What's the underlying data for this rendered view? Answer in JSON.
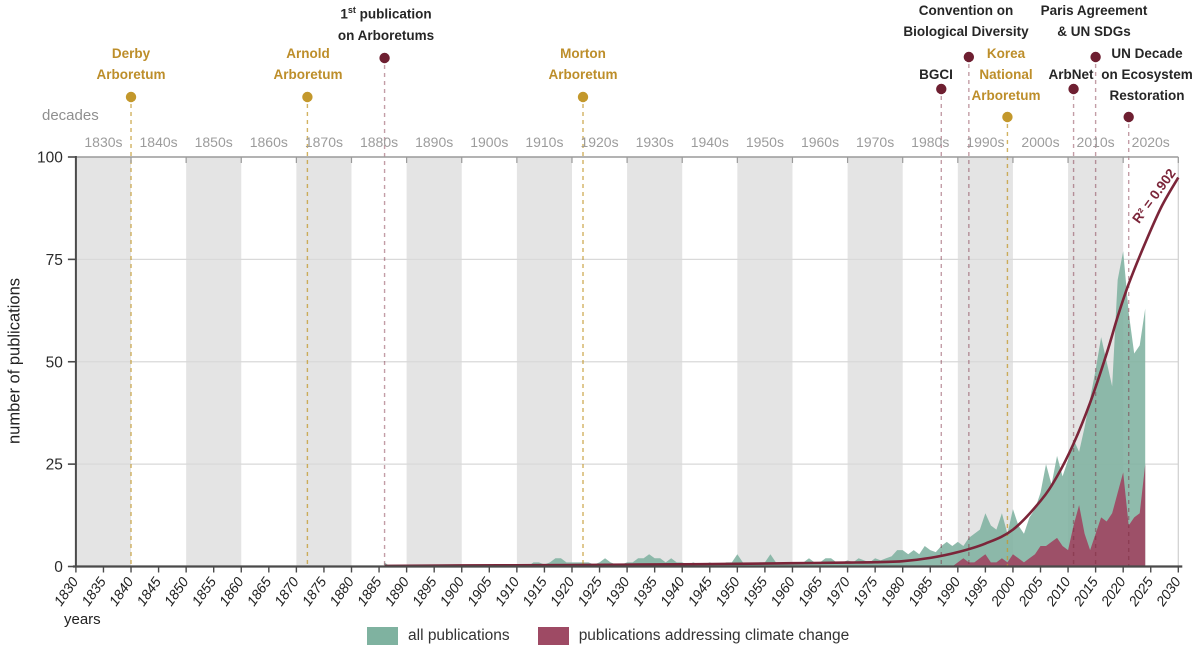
{
  "figure": {
    "y_axis_title": "number of publications",
    "x_axis_title": "years",
    "decades_row_label": "decades"
  },
  "chart_data": {
    "type": "area",
    "title": "",
    "xlabel": "years",
    "ylabel": "number of publications",
    "x_start_year": 1830,
    "x_end_year": 2030,
    "x_tick_step": 5,
    "ylim": [
      0,
      100
    ],
    "y_ticks": [
      0,
      25,
      50,
      75,
      100
    ],
    "grid_y": [
      25,
      50,
      75
    ],
    "decade_labels": [
      "1830s",
      "1840s",
      "1850s",
      "1860s",
      "1870s",
      "1880s",
      "1890s",
      "1900s",
      "1910s",
      "1920s",
      "1930s",
      "1940s",
      "1950s",
      "1960s",
      "1970s",
      "1980s",
      "1990s",
      "2000s",
      "2010s",
      "2020s"
    ],
    "shaded_decades": [
      1830,
      1850,
      1870,
      1890,
      1910,
      1930,
      1950,
      1970,
      1990,
      2010
    ],
    "legend_position": "bottom",
    "series": [
      {
        "name": "all publications",
        "color": "#7fb2a0",
        "start_year": 1886,
        "values": [
          1,
          0,
          0,
          0,
          0,
          0,
          0,
          0,
          0,
          0,
          0,
          0,
          0,
          0,
          0,
          0,
          0,
          0,
          0,
          0,
          0,
          0,
          0,
          0,
          0,
          0,
          0,
          1,
          1,
          0.5,
          1,
          2,
          2,
          1,
          1,
          1,
          1,
          1,
          0.5,
          1,
          2,
          1,
          0.5,
          0.5,
          1,
          1,
          2,
          2,
          3,
          2,
          2,
          1,
          2,
          1,
          1,
          0.5,
          1,
          0.5,
          0.5,
          1,
          0.5,
          0.5,
          1,
          1,
          3,
          1,
          0.5,
          0.5,
          1,
          1,
          3,
          1,
          0.5,
          0.5,
          0.5,
          1,
          1,
          2,
          1,
          1,
          2,
          2,
          1,
          1,
          1.5,
          1,
          2,
          1.5,
          1,
          2,
          1.5,
          2,
          2.5,
          4,
          4,
          3,
          4,
          3,
          5,
          4,
          3.5,
          5,
          6,
          5,
          6,
          5,
          7,
          8,
          9,
          13,
          10,
          9,
          13,
          8,
          14,
          10,
          8,
          12,
          14,
          18,
          25,
          20,
          27,
          22,
          26,
          31,
          28,
          34,
          41,
          48,
          56,
          50,
          44,
          70,
          77,
          62,
          52,
          54,
          63
        ]
      },
      {
        "name": "publications addressing climate change",
        "color": "#9e4a64",
        "start_year": 1886,
        "values": [
          0,
          0,
          0,
          0,
          0,
          0,
          0,
          0,
          0,
          0,
          0,
          0,
          0,
          0,
          0,
          0,
          0,
          0,
          0,
          0,
          0,
          0,
          0,
          0,
          0,
          0,
          0,
          0,
          0,
          0,
          0,
          0,
          0,
          0,
          0,
          0,
          0,
          0,
          0,
          0,
          0,
          0,
          0,
          0,
          0,
          0,
          0,
          0,
          0,
          0,
          0,
          0,
          0,
          0,
          0,
          0,
          0,
          0,
          0,
          0,
          0,
          0,
          0,
          0,
          0,
          0,
          0,
          0,
          0,
          0,
          0,
          0,
          0,
          0,
          0,
          0,
          0,
          0,
          0,
          0,
          0,
          0,
          0,
          0,
          0,
          0,
          0,
          0,
          0,
          0,
          0,
          0,
          0,
          0,
          0,
          0,
          0,
          0,
          0,
          0,
          0,
          0,
          0,
          0,
          1,
          2,
          1,
          1,
          2,
          3,
          1,
          1,
          2,
          1,
          3,
          2,
          1,
          2,
          3,
          5,
          5,
          6,
          7,
          5,
          4,
          10,
          15,
          8,
          4,
          8,
          12,
          11,
          13,
          18,
          23,
          10,
          12,
          13,
          25
        ]
      }
    ],
    "trend": {
      "label": "R² = 0.902",
      "r_squared": 0.902,
      "color": "#7b2539",
      "points": [
        [
          1886,
          0.15
        ],
        [
          1900,
          0.25
        ],
        [
          1910,
          0.3
        ],
        [
          1920,
          0.35
        ],
        [
          1930,
          0.45
        ],
        [
          1940,
          0.55
        ],
        [
          1950,
          0.65
        ],
        [
          1960,
          0.8
        ],
        [
          1970,
          0.95
        ],
        [
          1975,
          1.05
        ],
        [
          1980,
          1.3
        ],
        [
          1985,
          2.1
        ],
        [
          1990,
          3.5
        ],
        [
          1995,
          5.6
        ],
        [
          2000,
          9
        ],
        [
          2005,
          16
        ],
        [
          2008,
          22
        ],
        [
          2011,
          30
        ],
        [
          2014,
          40
        ],
        [
          2017,
          52
        ],
        [
          2019,
          61
        ],
        [
          2021,
          69
        ],
        [
          2024,
          79
        ],
        [
          2027,
          88
        ],
        [
          2030,
          95
        ]
      ]
    },
    "events": [
      {
        "name": "derby-arboretum",
        "year": 1840,
        "type": "gold",
        "dot_y": 97,
        "label_lines": [
          "Derby",
          "Arboretum"
        ]
      },
      {
        "name": "arnold-arboretum",
        "year": 1872,
        "type": "gold",
        "dot_y": 97,
        "label_lines": [
          "Arnold",
          "Arboretum"
        ]
      },
      {
        "name": "first-publication-on-arboretums",
        "year": 1886,
        "type": "darkred",
        "dot_y": 58,
        "label_lines": [
          "1st publication",
          "on Arboretums"
        ],
        "sup_parts": {
          "num": "1",
          "sup": "st",
          "rest": "publication"
        }
      },
      {
        "name": "morton-arboretum",
        "year": 1922,
        "type": "gold",
        "dot_y": 97,
        "label_lines": [
          "Morton",
          "Arboretum"
        ]
      },
      {
        "name": "bgci",
        "year": 1987,
        "type": "darkred",
        "dot_y": 89,
        "label_lines": [
          "BGCI"
        ]
      },
      {
        "name": "convention-on-biological-diversity",
        "year": 1992,
        "type": "darkred",
        "dot_y": 57,
        "label_lines": [
          "Convention on",
          "Biological Diversity"
        ]
      },
      {
        "name": "korea-national-arboretum",
        "year": 1999,
        "type": "gold",
        "dot_y": 117,
        "label_lines": [
          "Korea",
          "National",
          "Arboretum"
        ]
      },
      {
        "name": "arbnet",
        "year": 2011,
        "type": "darkred",
        "dot_y": 89,
        "label_lines": [
          "ArbNet"
        ]
      },
      {
        "name": "paris-agreement-un-sdgs",
        "year": 2015,
        "type": "darkred",
        "dot_y": 57,
        "label_lines": [
          "Paris Agreement",
          "& UN SDGs"
        ]
      },
      {
        "name": "un-decade-ecosystem-restoration",
        "year": 2021,
        "type": "darkred",
        "dot_y": 117,
        "label_lines": [
          "UN Decade",
          "on Ecosystem",
          "Restoration"
        ]
      }
    ],
    "colors": {
      "band": "#e4e4e4",
      "gridline": "#d9d9d9",
      "axis": "#4a4a4a",
      "frame_gray": "#9a9a9a",
      "right_edge": "#cfcfcf",
      "muted_text": "#9c9c9c",
      "tick_text": "#2b2b2b",
      "gold_dot": "#c3982c",
      "gold_text": "#bd8e2a",
      "dark_red_dot": "#6e1f31",
      "gold_dash": "rgba(195,152,44,0.75)",
      "dark_red_dash": "rgba(123,37,57,0.45)"
    }
  }
}
